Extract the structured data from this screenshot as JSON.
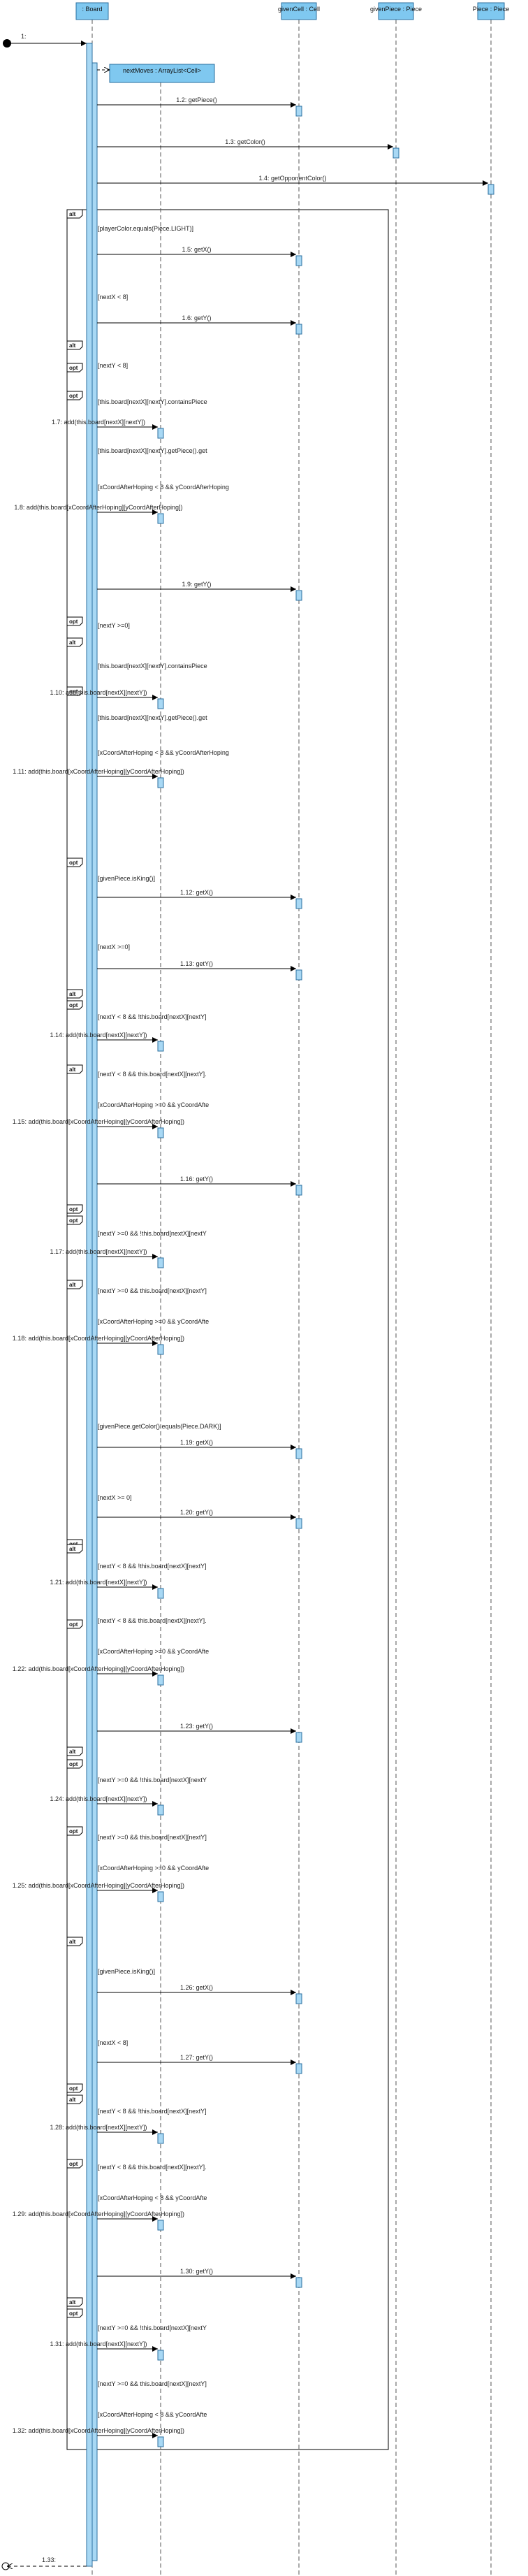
{
  "lifelines": [
    {
      "label": ": Board"
    },
    {
      "label": "nextMoves : ArrayList<Cell>"
    },
    {
      "label": "givenCell : Cell"
    },
    {
      "label": "givenPiece : Piece"
    },
    {
      "label": "Piece : Piece"
    }
  ],
  "messages": [
    {
      "label": "1:"
    },
    {
      "label": "1.2: getPiece()"
    },
    {
      "label": "1.3: getColor()"
    },
    {
      "label": "1.4: getOpponentColor()"
    },
    {
      "label": "1.5: getX()"
    },
    {
      "label": "1.6: getY()"
    },
    {
      "label": "1.7: add(this.board[nextX][nextY])"
    },
    {
      "label": "1.8: add(this.board[xCoordAfterHoping][yCoordAfterHoping])"
    },
    {
      "label": "1.9: getY()"
    },
    {
      "label": "1.10: add(this.board[nextX][nextY])"
    },
    {
      "label": "1.11: add(this.board[xCoordAfterHoping][yCoordAfterHoping])"
    },
    {
      "label": "1.12: getX()"
    },
    {
      "label": "1.13: getY()"
    },
    {
      "label": "1.14: add(this.board[nextX][nextY])"
    },
    {
      "label": "1.15: add(this.board[xCoordAfterHoping][yCoordAfterHoping])"
    },
    {
      "label": "1.16: getY()"
    },
    {
      "label": "1.17: add(this.board[nextX][nextY])"
    },
    {
      "label": "1.18: add(this.board[xCoordAfterHoping][yCoordAfterHoping])"
    },
    {
      "label": "1.19: getX()"
    },
    {
      "label": "1.20: getY()"
    },
    {
      "label": "1.21: add(this.board[nextX][nextY])"
    },
    {
      "label": "1.22: add(this.board[xCoordAfterHoping][yCoordAfterHoping])"
    },
    {
      "label": "1.23: getY()"
    },
    {
      "label": "1.24: add(this.board[nextX][nextY])"
    },
    {
      "label": "1.25: add(this.board[xCoordAfterHoping][yCoordAfterHoping])"
    },
    {
      "label": "1.26: getX()"
    },
    {
      "label": "1.27: getY()"
    },
    {
      "label": "1.28: add(this.board[nextX][nextY])"
    },
    {
      "label": "1.29: add(this.board[xCoordAfterHoping][yCoordAfterHoping])"
    },
    {
      "label": "1.30: getY()"
    },
    {
      "label": "1.31: add(this.board[nextX][nextY])"
    },
    {
      "label": "1.32: add(this.board[xCoordAfterHoping][yCoordAfterHoping])"
    },
    {
      "label": "1.33:"
    }
  ],
  "fragments": [
    {
      "operator": "alt"
    },
    {
      "operator": "opt"
    },
    {
      "operator": "alt"
    },
    {
      "operator": "opt"
    },
    {
      "operator": "opt"
    },
    {
      "operator": "alt"
    },
    {
      "operator": "opt"
    },
    {
      "operator": "opt"
    },
    {
      "operator": "alt"
    },
    {
      "operator": "opt"
    },
    {
      "operator": "alt"
    },
    {
      "operator": "opt"
    },
    {
      "operator": "opt"
    },
    {
      "operator": "alt"
    },
    {
      "operator": "opt"
    },
    {
      "operator": "alt"
    },
    {
      "operator": "opt"
    },
    {
      "operator": "alt"
    },
    {
      "operator": "opt"
    },
    {
      "operator": "opt"
    },
    {
      "operator": "alt"
    },
    {
      "operator": "opt"
    },
    {
      "operator": "alt"
    },
    {
      "operator": "opt"
    },
    {
      "operator": "alt"
    },
    {
      "operator": "opt"
    }
  ],
  "guards": [
    {
      "text": "[playerColor.equals(Piece.LIGHT)]"
    },
    {
      "text": "[nextX < 8]"
    },
    {
      "text": "[nextY < 8]"
    },
    {
      "text": "[this.board[nextX][nextY].containsPiece"
    },
    {
      "text": "[this.board[nextX][nextY].getPiece().get"
    },
    {
      "text": "[xCoordAfterHoping < 8 && yCoordAfterHoping"
    },
    {
      "text": "[nextY >=0]"
    },
    {
      "text": "[this.board[nextX][nextY].containsPiece"
    },
    {
      "text": "[this.board[nextX][nextY].getPiece().get"
    },
    {
      "text": "[xCoordAfterHoping < 8 && yCoordAfterHoping"
    },
    {
      "text": "[givenPiece.isKing()]"
    },
    {
      "text": "[nextX >=0]"
    },
    {
      "text": "[nextY < 8 && !this.board[nextX][nextY]"
    },
    {
      "text": "[nextY < 8 && this.board[nextX][nextY]."
    },
    {
      "text": "[xCoordAfterHoping >=0 && yCoordAfte"
    },
    {
      "text": "[nextY >=0 && !this.board[nextX][nextY"
    },
    {
      "text": "[nextY >=0 && this.board[nextX][nextY]"
    },
    {
      "text": "[xCoordAfterHoping >=0 && yCoordAfte"
    },
    {
      "text": "[givenPiece.getColor().equals(Piece.DARK)]"
    },
    {
      "text": "[nextX >= 0]"
    },
    {
      "text": "[nextY < 8 && !this.board[nextX][nextY]"
    },
    {
      "text": "[nextY < 8 && this.board[nextX][nextY]."
    },
    {
      "text": "[xCoordAfterHoping >=0 && yCoordAfte"
    },
    {
      "text": "[nextY >=0 && !this.board[nextX][nextY"
    },
    {
      "text": "[nextY >=0 && this.board[nextX][nextY]"
    },
    {
      "text": "[xCoordAfterHoping >=0 && yCoordAfte"
    },
    {
      "text": "[givenPiece.isKing()]"
    },
    {
      "text": "[nextX < 8]"
    },
    {
      "text": "[nextY < 8 && !this.board[nextX][nextY]"
    },
    {
      "text": "[nextY < 8 && this.board[nextX][nextY]."
    },
    {
      "text": "[xCoordAfterHoping < 8 && yCoordAfte"
    },
    {
      "text": "[nextY >=0 && !this.board[nextX][nextY"
    },
    {
      "text": "[nextY >=0 && this.board[nextX][nextY]"
    },
    {
      "text": "[xCoordAfterHoping < 8 && yCoordAfte"
    }
  ],
  "colors": {
    "lifeline_fill": "#7fc8f0",
    "lifeline_stroke": "#2b6f9f",
    "activation_fill": "#a8d8f4",
    "line": "#000000",
    "lifeline_dash": "#555555"
  }
}
